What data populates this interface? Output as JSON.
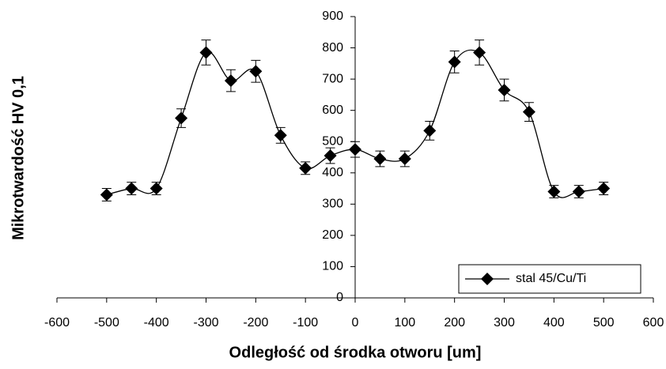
{
  "chart_data": {
    "type": "line",
    "x_label": "Odległość od środka otworu [um]",
    "y_label": "Mikrotwardość HV 0,1",
    "x": [
      -500,
      -450,
      -400,
      -350,
      -300,
      -250,
      -200,
      -150,
      -100,
      -50,
      0,
      50,
      100,
      150,
      200,
      250,
      300,
      350,
      400,
      450,
      500
    ],
    "series": [
      {
        "name": "stal 45/Cu/Ti",
        "color": "#000000",
        "values": [
          330,
          350,
          350,
          575,
          785,
          695,
          725,
          520,
          415,
          455,
          475,
          445,
          445,
          535,
          755,
          785,
          665,
          595,
          340,
          340,
          350
        ],
        "errors": [
          20,
          20,
          20,
          30,
          40,
          35,
          35,
          25,
          20,
          25,
          25,
          25,
          25,
          30,
          35,
          40,
          35,
          30,
          20,
          20,
          20
        ]
      }
    ],
    "xlim": [
      -600,
      600
    ],
    "xticks": [
      -600,
      -500,
      -400,
      -300,
      -200,
      -100,
      0,
      100,
      200,
      300,
      400,
      500,
      600
    ],
    "ylim": [
      0,
      900
    ],
    "yticks": [
      0,
      100,
      200,
      300,
      400,
      500,
      600,
      700,
      800,
      900
    ],
    "legend": "lower right"
  }
}
